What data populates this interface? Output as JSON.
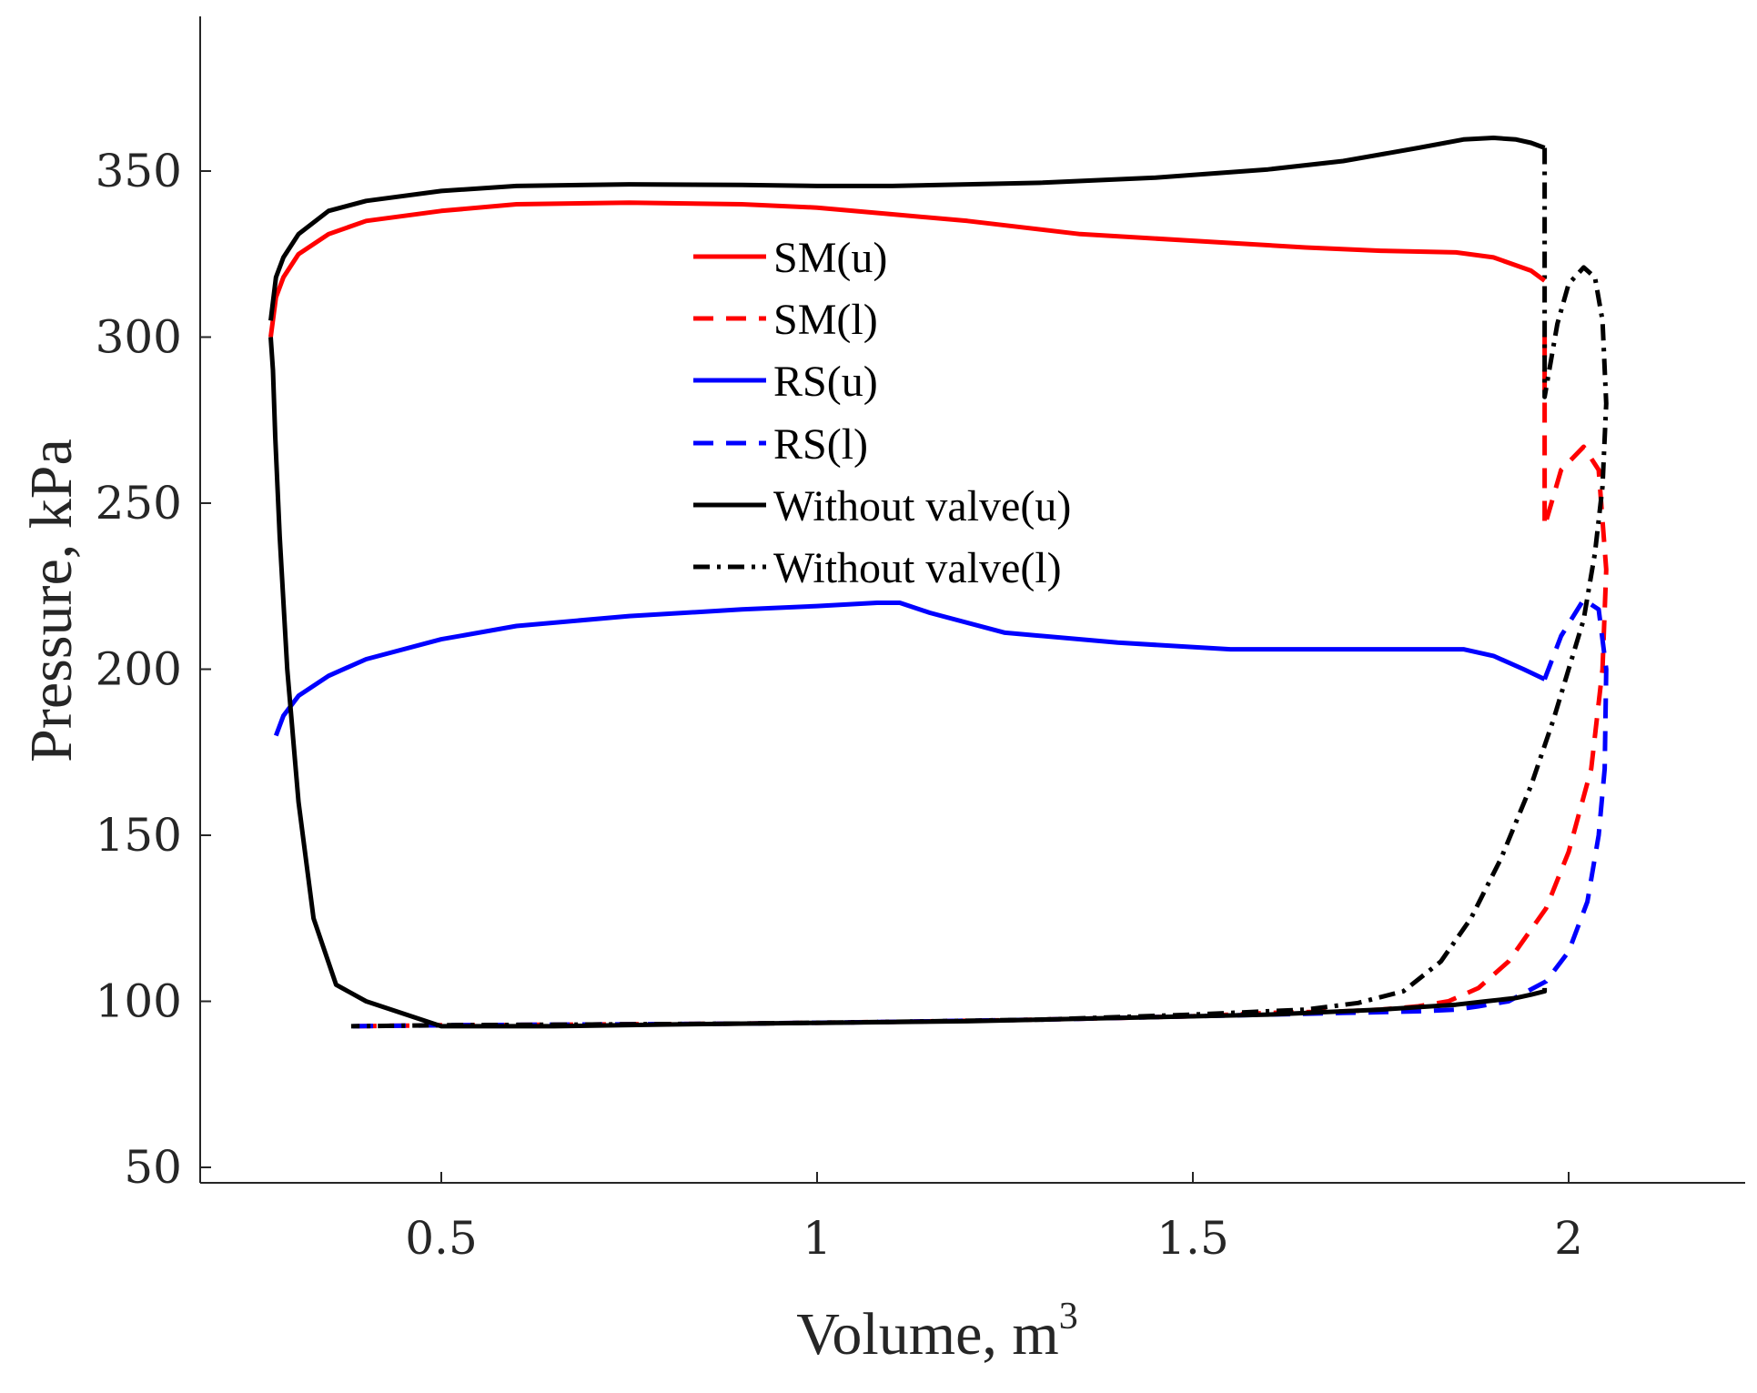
{
  "chart_data": {
    "type": "line",
    "title": "",
    "xlabel": "Volume, m",
    "xlabel_superscript": "3",
    "ylabel": "Pressure, kPa",
    "xlim": [
      0.18,
      2.23
    ],
    "ylim": [
      47,
      395
    ],
    "xticks": [
      0.5,
      1,
      1.5,
      2
    ],
    "xtick_labels": [
      "0.5",
      "1",
      "1.5",
      "2"
    ],
    "yticks": [
      50,
      100,
      150,
      200,
      250,
      300,
      350
    ],
    "ytick_labels": [
      "50",
      "100",
      "150",
      "200",
      "250",
      "300",
      "350"
    ],
    "grid": false,
    "legend_position": "upper-center",
    "series": [
      {
        "name": "SM(u)",
        "color": "#ff0000",
        "style": "solid",
        "x": [
          0.273,
          0.28,
          0.29,
          0.31,
          0.35,
          0.4,
          0.5,
          0.6,
          0.75,
          0.9,
          1.0,
          1.1,
          1.2,
          1.35,
          1.5,
          1.65,
          1.75,
          1.85,
          1.9,
          1.95,
          1.968
        ],
        "y": [
          300,
          312,
          318,
          325,
          331,
          335,
          338,
          340,
          340.5,
          340,
          339,
          337,
          335,
          331,
          329,
          327,
          326,
          325.5,
          324,
          320,
          317
        ]
      },
      {
        "name": "SM(l)",
        "color": "#ff0000",
        "style": "dashed",
        "x": [
          1.968,
          1.968,
          1.99,
          2.02,
          2.04,
          2.05,
          2.045,
          2.03,
          2.0,
          1.97,
          1.92,
          1.88,
          1.84,
          1.8,
          1.75,
          1.7,
          1.6,
          1.5,
          1.3,
          1.1,
          0.9,
          0.7,
          0.5,
          0.38
        ],
        "y": [
          300,
          243,
          260,
          267,
          260,
          230,
          200,
          170,
          145,
          128,
          112,
          104,
          100,
          98.5,
          97.5,
          97,
          96.5,
          95.5,
          94.5,
          93.8,
          93.3,
          93,
          92.8,
          92.5
        ]
      },
      {
        "name": "RS(u)",
        "color": "#0000ff",
        "style": "solid",
        "x": [
          0.28,
          0.29,
          0.31,
          0.35,
          0.4,
          0.5,
          0.6,
          0.75,
          0.9,
          1.0,
          1.08,
          1.11,
          1.15,
          1.25,
          1.4,
          1.55,
          1.7,
          1.86,
          1.9,
          1.94,
          1.968
        ],
        "y": [
          180,
          186,
          192,
          198,
          203,
          209,
          213,
          216,
          218,
          219,
          220,
          220,
          217,
          211,
          208,
          206,
          206,
          206,
          204,
          200,
          197
        ]
      },
      {
        "name": "RS(l)",
        "color": "#0000ff",
        "style": "dashed",
        "x": [
          1.968,
          1.99,
          2.02,
          2.04,
          2.05,
          2.048,
          2.04,
          2.025,
          2.0,
          1.97,
          1.92,
          1.88,
          1.85,
          1.8,
          1.7,
          1.5,
          1.3,
          1.1,
          0.9,
          0.7,
          0.5,
          0.38
        ],
        "y": [
          197,
          210,
          221,
          218,
          200,
          170,
          150,
          130,
          115,
          106,
          100,
          98.5,
          97.5,
          97,
          96.5,
          95.5,
          94.5,
          93.8,
          93.3,
          93,
          92.8,
          92.5
        ]
      },
      {
        "name": "Without valve(u)",
        "color": "#000000",
        "style": "solid",
        "x": [
          0.273,
          0.276,
          0.279,
          0.285,
          0.295,
          0.31,
          0.33,
          0.36,
          0.4,
          0.5,
          0.65,
          0.8,
          1.0,
          1.2,
          1.4,
          1.6,
          1.75,
          1.85,
          1.89,
          1.91,
          1.93,
          1.95,
          1.968,
          1.968
        ],
        "y": [
          300,
          290,
          270,
          240,
          200,
          160,
          125,
          105,
          100,
          92.5,
          92.5,
          93,
          93.5,
          94,
          95,
          96,
          97.5,
          99,
          100,
          100.5,
          101,
          102,
          103,
          104
        ]
      },
      {
        "name": "Without valve(l)",
        "color": "#000000",
        "style": "dashdot",
        "x": [
          1.968,
          1.968,
          1.985,
          2.0,
          2.02,
          2.035,
          2.045,
          2.05,
          2.045,
          2.035,
          2.02,
          2.0,
          1.98,
          1.95,
          1.91,
          1.87,
          1.83,
          1.78,
          1.72,
          1.65,
          1.5,
          1.3,
          1.1,
          0.9,
          0.7,
          0.5,
          0.38
        ],
        "y": [
          357,
          282,
          304,
          316,
          321,
          318,
          305,
          280,
          255,
          235,
          215,
          200,
          185,
          165,
          143,
          125,
          112,
          103,
          99.5,
          97.5,
          96,
          94.5,
          93.8,
          93.3,
          93,
          92.8,
          92.5
        ]
      }
    ],
    "upper_black_curve": {
      "x": [
        0.273,
        0.28,
        0.29,
        0.31,
        0.35,
        0.4,
        0.5,
        0.6,
        0.75,
        0.9,
        1.0,
        1.1,
        1.2,
        1.3,
        1.45,
        1.6,
        1.7,
        1.8,
        1.86,
        1.9,
        1.93,
        1.95,
        1.968
      ],
      "y": [
        305,
        318,
        324,
        331,
        338,
        341,
        344,
        345.5,
        346,
        345.8,
        345.5,
        345.5,
        346,
        346.5,
        348,
        350.5,
        353,
        357,
        359.5,
        360,
        359.5,
        358.5,
        357
      ]
    }
  }
}
